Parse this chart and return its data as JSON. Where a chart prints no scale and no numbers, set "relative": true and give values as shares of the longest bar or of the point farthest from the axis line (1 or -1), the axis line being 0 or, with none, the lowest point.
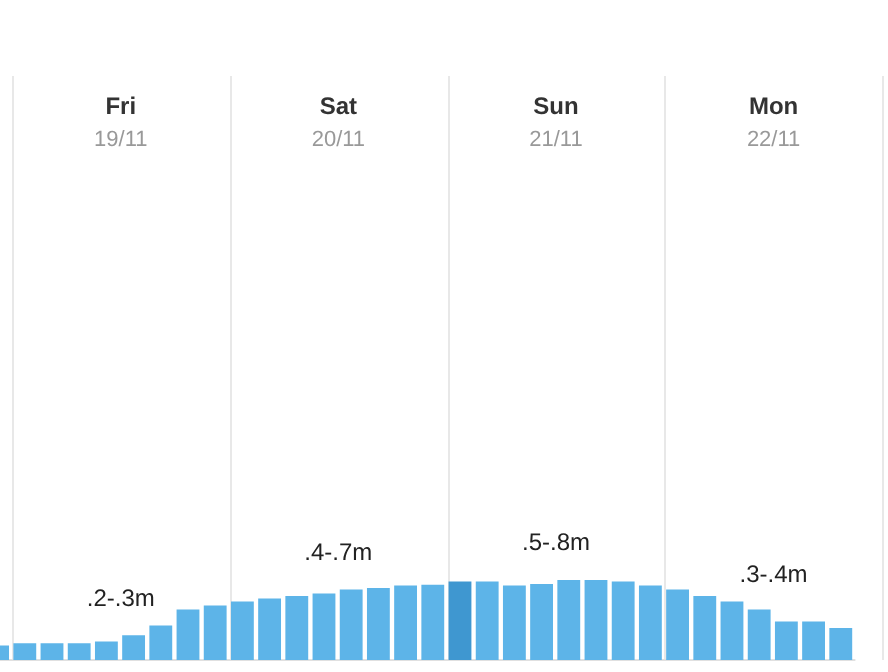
{
  "chart_data": {
    "type": "bar",
    "relative": true,
    "categories": [
      null,
      null,
      null,
      null,
      null,
      null,
      null,
      null,
      null,
      null,
      null,
      null,
      null,
      null,
      null,
      null,
      null,
      null,
      null,
      null,
      null,
      null,
      null,
      null,
      null,
      null,
      null,
      null,
      null,
      null,
      null,
      null
    ],
    "values": [
      0.18,
      0.21,
      0.21,
      0.21,
      0.23,
      0.31,
      0.43,
      0.63,
      0.68,
      0.73,
      0.77,
      0.8,
      0.83,
      0.88,
      0.9,
      0.93,
      0.94,
      0.98,
      0.98,
      0.93,
      0.95,
      1,
      1,
      0.98,
      0.93,
      0.88,
      0.8,
      0.73,
      0.63,
      0.48,
      0.48,
      0.4
    ],
    "colors": [
      "#5db4e8",
      "#5db4e8",
      "#5db4e8",
      "#5db4e8",
      "#5db4e8",
      "#5db4e8",
      "#5db4e8",
      "#5db4e8",
      "#5db4e8",
      "#5db4e8",
      "#5db4e8",
      "#5db4e8",
      "#5db4e8",
      "#5db4e8",
      "#5db4e8",
      "#5db4e8",
      "#5db4e8",
      "#3f97d0",
      "#5db4e8",
      "#5db4e8",
      "#5db4e8",
      "#5db4e8",
      "#5db4e8",
      "#5db4e8",
      "#5db4e8",
      "#5db4e8",
      "#5db4e8",
      "#5db4e8",
      "#5db4e8",
      "#5db4e8",
      "#5db4e8",
      "#5db4e8"
    ],
    "annotations": [
      "Fri",
      "19/11",
      "Sat",
      "20/11",
      "Sun",
      "21/11",
      "Mon",
      "22/11",
      ".2-.3m",
      ".4-.7m",
      ".5-.8m",
      ".3-.4m"
    ]
  }
}
